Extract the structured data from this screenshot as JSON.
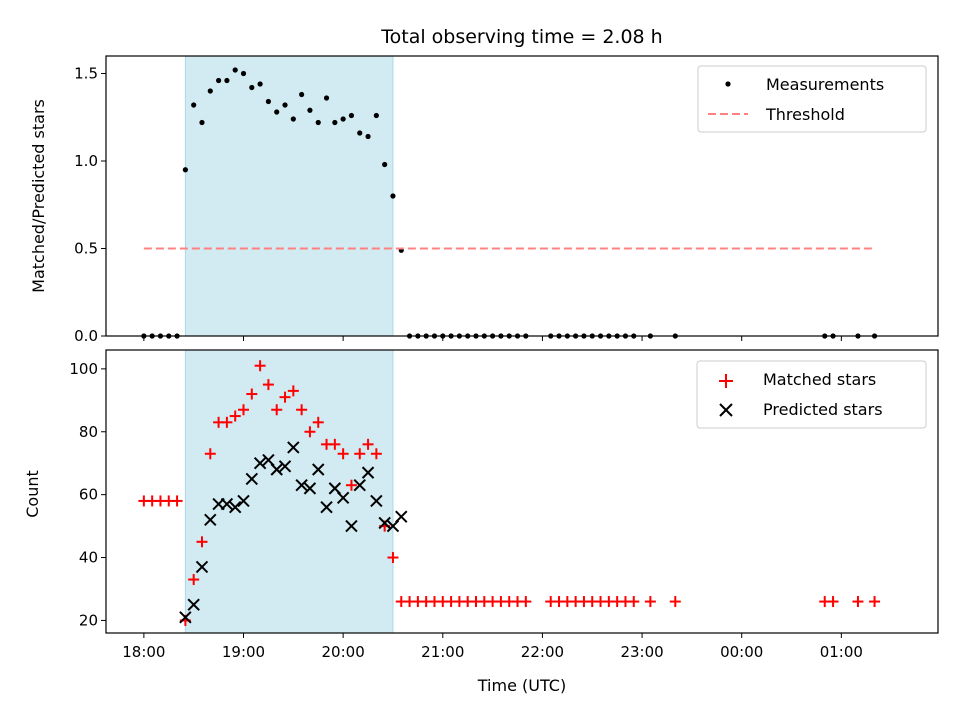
{
  "chart_data": [
    {
      "type": "scatter",
      "title": "Total observing time = 2.08 h",
      "xlabel": "",
      "ylabel": "Matched/Predicted stars",
      "xlim_hours": [
        17.62,
        25.97
      ],
      "ylim": [
        0,
        1.6
      ],
      "yticks": [
        0.0,
        0.5,
        1.0,
        1.5
      ],
      "ytick_labels": [
        "0.0",
        "0.5",
        "1.0",
        "1.5"
      ],
      "grid": false,
      "legend_position": "top-right",
      "shaded_span": {
        "from": "18:25",
        "to": "20:30",
        "color": "#add8e6"
      },
      "series": [
        {
          "name": "Measurements",
          "kind": "scatter",
          "color": "#000000",
          "x": [
            "18:00",
            "18:05",
            "18:10",
            "18:15",
            "18:20",
            "18:25",
            "18:30",
            "18:35",
            "18:40",
            "18:45",
            "18:50",
            "18:55",
            "19:00",
            "19:05",
            "19:10",
            "19:15",
            "19:20",
            "19:25",
            "19:30",
            "19:35",
            "19:40",
            "19:45",
            "19:50",
            "19:55",
            "20:00",
            "20:05",
            "20:10",
            "20:15",
            "20:20",
            "20:25",
            "20:30",
            "20:35",
            "20:40",
            "20:45",
            "20:50",
            "20:55",
            "21:00",
            "21:05",
            "21:10",
            "21:15",
            "21:20",
            "21:25",
            "21:30",
            "21:35",
            "21:40",
            "21:45",
            "21:50",
            "22:05",
            "22:10",
            "22:15",
            "22:20",
            "22:25",
            "22:30",
            "22:35",
            "22:40",
            "22:45",
            "22:50",
            "22:55",
            "23:05",
            "23:20",
            "00:50",
            "00:55",
            "01:10",
            "01:20"
          ],
          "y": [
            0,
            0,
            0,
            0,
            0,
            0.95,
            1.32,
            1.22,
            1.4,
            1.46,
            1.46,
            1.52,
            1.5,
            1.42,
            1.44,
            1.34,
            1.28,
            1.32,
            1.24,
            1.38,
            1.29,
            1.22,
            1.36,
            1.22,
            1.24,
            1.26,
            1.16,
            1.14,
            1.26,
            0.98,
            0.8,
            0.49,
            0,
            0,
            0,
            0,
            0,
            0,
            0,
            0,
            0,
            0,
            0,
            0,
            0,
            0,
            0,
            0,
            0,
            0,
            0,
            0,
            0,
            0,
            0,
            0,
            0,
            0,
            0,
            0,
            0,
            0,
            0,
            0
          ]
        },
        {
          "name": "Threshold",
          "kind": "line",
          "style": "dashed",
          "color": "#ff8080",
          "x": [
            "18:00",
            "01:20"
          ],
          "y": [
            0.5,
            0.5
          ]
        }
      ]
    },
    {
      "type": "scatter",
      "title": "",
      "xlabel": "Time (UTC)",
      "ylabel": "Count",
      "xlim_hours": [
        17.62,
        25.97
      ],
      "ylim": [
        16,
        106
      ],
      "yticks": [
        20,
        40,
        60,
        80,
        100
      ],
      "ytick_labels": [
        "20",
        "40",
        "60",
        "80",
        "100"
      ],
      "xticks_hours": [
        18,
        19,
        20,
        21,
        22,
        23,
        24,
        25
      ],
      "xtick_labels": [
        "18:00",
        "19:00",
        "20:00",
        "21:00",
        "22:00",
        "23:00",
        "00:00",
        "01:00"
      ],
      "grid": false,
      "legend_position": "top-right",
      "shaded_span": {
        "from": "18:25",
        "to": "20:30",
        "color": "#add8e6"
      },
      "series": [
        {
          "name": "Matched stars",
          "marker": "plus",
          "color": "#ff0000",
          "x": [
            "18:00",
            "18:05",
            "18:10",
            "18:15",
            "18:20",
            "18:25",
            "18:30",
            "18:35",
            "18:40",
            "18:45",
            "18:50",
            "18:55",
            "19:00",
            "19:05",
            "19:10",
            "19:15",
            "19:20",
            "19:25",
            "19:30",
            "19:35",
            "19:40",
            "19:45",
            "19:50",
            "19:55",
            "20:00",
            "20:05",
            "20:10",
            "20:15",
            "20:20",
            "20:25",
            "20:30",
            "20:35",
            "20:40",
            "20:45",
            "20:50",
            "20:55",
            "21:00",
            "21:05",
            "21:10",
            "21:15",
            "21:20",
            "21:25",
            "21:30",
            "21:35",
            "21:40",
            "21:45",
            "21:50",
            "22:05",
            "22:10",
            "22:15",
            "22:20",
            "22:25",
            "22:30",
            "22:35",
            "22:40",
            "22:45",
            "22:50",
            "22:55",
            "23:05",
            "23:20",
            "00:50",
            "00:55",
            "01:10",
            "01:20"
          ],
          "y": [
            58,
            58,
            58,
            58,
            58,
            20,
            33,
            45,
            73,
            83,
            83,
            85,
            87,
            92,
            101,
            95,
            87,
            91,
            93,
            87,
            80,
            83,
            76,
            76,
            73,
            63,
            73,
            76,
            73,
            50,
            40,
            26,
            26,
            26,
            26,
            26,
            26,
            26,
            26,
            26,
            26,
            26,
            26,
            26,
            26,
            26,
            26,
            26,
            26,
            26,
            26,
            26,
            26,
            26,
            26,
            26,
            26,
            26,
            26,
            26,
            26,
            26,
            26,
            26
          ]
        },
        {
          "name": "Predicted stars",
          "marker": "x",
          "color": "#000000",
          "x": [
            "18:25",
            "18:30",
            "18:35",
            "18:40",
            "18:45",
            "18:50",
            "18:55",
            "19:00",
            "19:05",
            "19:10",
            "19:15",
            "19:20",
            "19:25",
            "19:30",
            "19:35",
            "19:40",
            "19:45",
            "19:50",
            "19:55",
            "20:00",
            "20:05",
            "20:10",
            "20:15",
            "20:20",
            "20:25",
            "20:30",
            "20:35"
          ],
          "y": [
            21,
            25,
            37,
            52,
            57,
            57,
            56,
            58,
            65,
            70,
            71,
            68,
            69,
            75,
            63,
            62,
            68,
            56,
            62,
            59,
            50,
            63,
            67,
            58,
            51,
            50,
            53
          ]
        }
      ]
    }
  ]
}
